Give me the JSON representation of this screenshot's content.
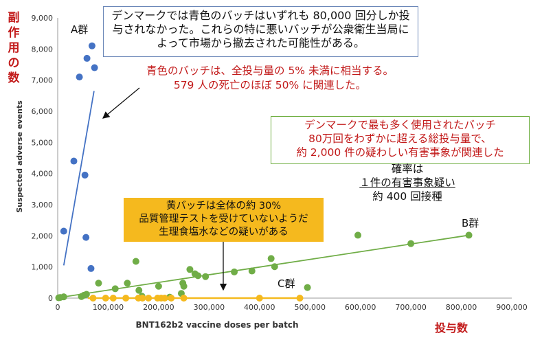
{
  "colors": {
    "blue": "#4472c4",
    "green": "#70ad47",
    "yellow": "#f5b91e",
    "red": "#c21a1a",
    "axis": "#999999"
  },
  "labels": {
    "y_jp": "副作用の数",
    "x_jp": "投与数",
    "group_a": "A群",
    "group_b": "B群",
    "group_c": "C群"
  },
  "annotations": {
    "blue_box": "デンマークでは青色のバッチはいずれも 80,000 回分しか投与されなかった。これらの特に悪いバッチが公衆衛生当局によって市場から撤去された可能性がある。",
    "blue_note_line1": "青色のバッチは、全投与量の 5% 未満に相当する。",
    "blue_note_line2": "579 人の死亡のほぼ 50% に関連した。",
    "green_line1": "デンマークで最も多く使用されたバッチ",
    "green_line2": "80万回をわずかに超える総投与量で、",
    "green_line3": "約 2,000 件の疑わしい有害事象が関連した",
    "prob_line1": "確率は",
    "prob_line2": "１件の有害事象疑い",
    "prob_line3": "約 400 回接種",
    "yellow_line1": "黄バッチは全体の約 30%",
    "yellow_line2": "品質管理テストを受けていないようだ",
    "yellow_line3": "生理食塩水などの疑いがある"
  },
  "chart_data": {
    "type": "scatter",
    "xlabel": "BNT162b2 vaccine doses per batch",
    "ylabel": "Suspected adverse events",
    "xlim": [
      0,
      900000
    ],
    "ylim": [
      0,
      9000
    ],
    "x_ticks": [
      "0",
      "100,000",
      "200,000",
      "300,000",
      "400,000",
      "500,000",
      "600,000",
      "700,000",
      "800,000",
      "900,000"
    ],
    "y_ticks": [
      "0",
      "1,000",
      "2,000",
      "3,000",
      "4,000",
      "5,000",
      "6,000",
      "7,000",
      "8,000",
      "9,000"
    ],
    "grid": false,
    "series": [
      {
        "name": "A群",
        "color": "#4472c4",
        "points": [
          [
            68000,
            8100
          ],
          [
            58000,
            7700
          ],
          [
            73000,
            7400
          ],
          [
            43000,
            7100
          ],
          [
            32000,
            4400
          ],
          [
            54000,
            3950
          ],
          [
            12000,
            2150
          ],
          [
            56000,
            1950
          ],
          [
            66000,
            950
          ]
        ],
        "trend": [
          [
            12000,
            1050
          ],
          [
            72000,
            6650
          ]
        ]
      },
      {
        "name": "B群",
        "color": "#70ad47",
        "points": [
          [
            2000,
            10
          ],
          [
            5000,
            20
          ],
          [
            12000,
            40
          ],
          [
            47000,
            50
          ],
          [
            52000,
            90
          ],
          [
            57000,
            120
          ],
          [
            81000,
            480
          ],
          [
            114000,
            300
          ],
          [
            138000,
            480
          ],
          [
            155000,
            1180
          ],
          [
            161000,
            250
          ],
          [
            167000,
            60
          ],
          [
            200000,
            380
          ],
          [
            222000,
            30
          ],
          [
            245000,
            150
          ],
          [
            248000,
            480
          ],
          [
            250000,
            380
          ],
          [
            262000,
            920
          ],
          [
            272000,
            780
          ],
          [
            278000,
            720
          ],
          [
            293000,
            690
          ],
          [
            350000,
            840
          ],
          [
            385000,
            870
          ],
          [
            423000,
            1270
          ],
          [
            430000,
            1010
          ],
          [
            495000,
            340
          ],
          [
            595000,
            2020
          ],
          [
            700000,
            1750
          ],
          [
            815000,
            2020
          ]
        ],
        "trend": [
          [
            0,
            10
          ],
          [
            815000,
            2020
          ]
        ]
      },
      {
        "name": "C群",
        "color": "#f5b91e",
        "points": [
          [
            70000,
            0
          ],
          [
            95000,
            0
          ],
          [
            110000,
            0
          ],
          [
            135000,
            0
          ],
          [
            160000,
            0
          ],
          [
            168000,
            0
          ],
          [
            180000,
            0
          ],
          [
            198000,
            0
          ],
          [
            205000,
            0
          ],
          [
            212000,
            0
          ],
          [
            225000,
            0
          ],
          [
            250000,
            0
          ],
          [
            400000,
            0
          ],
          [
            480000,
            0
          ]
        ],
        "trend": [
          [
            60000,
            0
          ],
          [
            485000,
            0
          ]
        ]
      }
    ]
  }
}
